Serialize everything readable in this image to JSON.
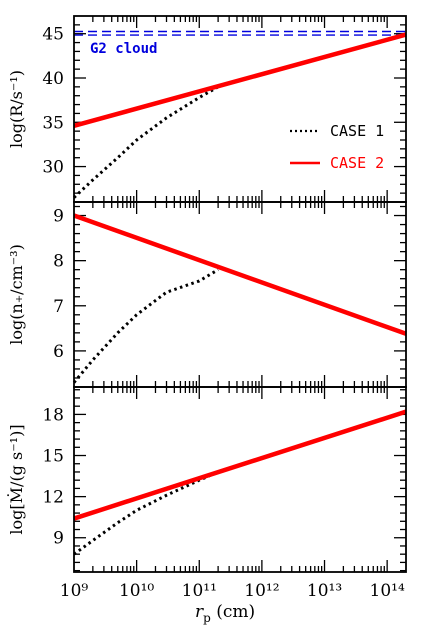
{
  "figure": {
    "xlabel_main": "r",
    "xlabel_sub": "p",
    "xlabel_unit": " (cm)"
  },
  "chart_data": [
    {
      "type": "line",
      "ylabel": "log(R/s⁻¹)",
      "ylim": [
        26,
        47
      ],
      "yticks": [
        30,
        35,
        40,
        45
      ],
      "xscale": "log",
      "xlim": [
        1000000000.0,
        200000000000000.0
      ],
      "xticks": [
        "10⁹",
        "10¹⁰",
        "10¹¹",
        "10¹²",
        "10¹³",
        "10¹⁴"
      ],
      "series": [
        {
          "name": "CASE 1",
          "color": "#000000",
          "style": "dotted",
          "x": [
            1000000000.0,
            2000000000.0,
            5000000000.0,
            10000000000.0,
            30000000000.0,
            100000000000.0,
            200000000000.0
          ],
          "y": [
            26.5,
            28.5,
            31.0,
            33.0,
            35.5,
            37.8,
            39.0
          ]
        },
        {
          "name": "CASE 2",
          "color": "#ff0000",
          "style": "solid",
          "x": [
            1000000000.0,
            200000000000000.0
          ],
          "y": [
            34.6,
            44.9
          ]
        }
      ],
      "reference_lines": [
        {
          "label": "G2 cloud",
          "color": "#0000dd",
          "style": "dashed",
          "y": [
            44.85,
            45.25
          ]
        }
      ]
    },
    {
      "type": "line",
      "ylabel": "log(n₊/cm⁻³)",
      "ylim": [
        5.2,
        9.3
      ],
      "yticks": [
        6,
        7,
        8,
        9
      ],
      "xscale": "log",
      "xlim": [
        1000000000.0,
        200000000000000.0
      ],
      "series": [
        {
          "name": "CASE 1",
          "color": "#000000",
          "style": "dotted",
          "x": [
            1000000000.0,
            2000000000.0,
            5000000000.0,
            10000000000.0,
            30000000000.0,
            100000000000.0,
            200000000000.0
          ],
          "y": [
            5.3,
            5.8,
            6.4,
            6.8,
            7.3,
            7.55,
            7.8
          ]
        },
        {
          "name": "CASE 2",
          "color": "#ff0000",
          "style": "solid",
          "x": [
            1000000000.0,
            200000000000000.0
          ],
          "y": [
            9.0,
            6.38
          ]
        }
      ]
    },
    {
      "type": "line",
      "ylabel": "log[Ṁ/(g s⁻¹)]",
      "ylim": [
        6.5,
        20.0
      ],
      "yticks": [
        9,
        12,
        15,
        18
      ],
      "xscale": "log",
      "xlim": [
        1000000000.0,
        200000000000000.0
      ],
      "series": [
        {
          "name": "CASE 1",
          "color": "#000000",
          "style": "dotted",
          "x": [
            1000000000.0,
            2000000000.0,
            5000000000.0,
            10000000000.0,
            30000000000.0,
            100000000000.0,
            200000000000.0
          ],
          "y": [
            7.8,
            8.8,
            10.1,
            11.0,
            12.1,
            13.2,
            13.8
          ]
        },
        {
          "name": "CASE 2",
          "color": "#ff0000",
          "style": "solid",
          "x": [
            1000000000.0,
            200000000000000.0
          ],
          "y": [
            10.4,
            18.2
          ]
        }
      ]
    }
  ]
}
